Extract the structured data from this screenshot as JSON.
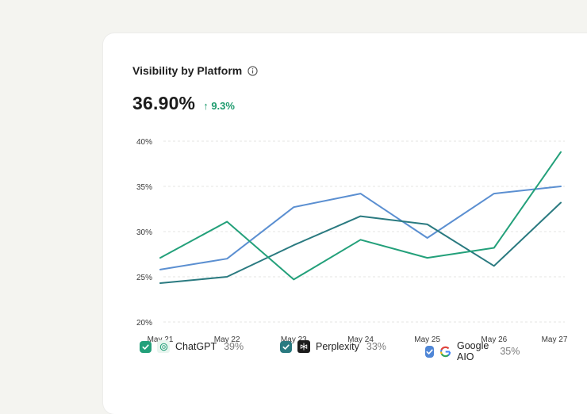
{
  "card": {
    "title": "Visibility by Platform",
    "metric": "36.90%",
    "delta": "↑ 9.3%"
  },
  "colors": {
    "chatgpt": "#23a07a",
    "perplexity": "#2a7a80",
    "google": "#5b8fd1",
    "delta": "#1e9b6e"
  },
  "chart_data": {
    "type": "line",
    "categories": [
      "May 21",
      "May 22",
      "May 23",
      "May 24",
      "May 25",
      "May 26",
      "May 27"
    ],
    "ylim": [
      20,
      40
    ],
    "yticks": [
      "20%",
      "25%",
      "30%",
      "35%",
      "40%"
    ],
    "ytick_values": [
      20,
      25,
      30,
      35,
      40
    ],
    "grid": true,
    "series": [
      {
        "name": "ChatGPT",
        "key": "chatgpt",
        "values": [
          27.1,
          31.1,
          24.7,
          29.1,
          27.1,
          28.2,
          38.8
        ]
      },
      {
        "name": "Perplexity",
        "key": "perplexity",
        "values": [
          24.3,
          25.0,
          28.5,
          31.7,
          30.8,
          26.2,
          33.2
        ]
      },
      {
        "name": "Google AIO",
        "key": "google",
        "values": [
          25.8,
          27.0,
          32.7,
          34.2,
          29.3,
          34.2,
          35.0
        ]
      }
    ]
  },
  "legend": [
    {
      "name": "ChatGPT",
      "value": "39%",
      "icon": "openai-icon"
    },
    {
      "name": "Perplexity",
      "value": "33%",
      "icon": "perplexity-icon"
    },
    {
      "name": "Google AIO",
      "value": "35%",
      "icon": "google-icon"
    }
  ]
}
